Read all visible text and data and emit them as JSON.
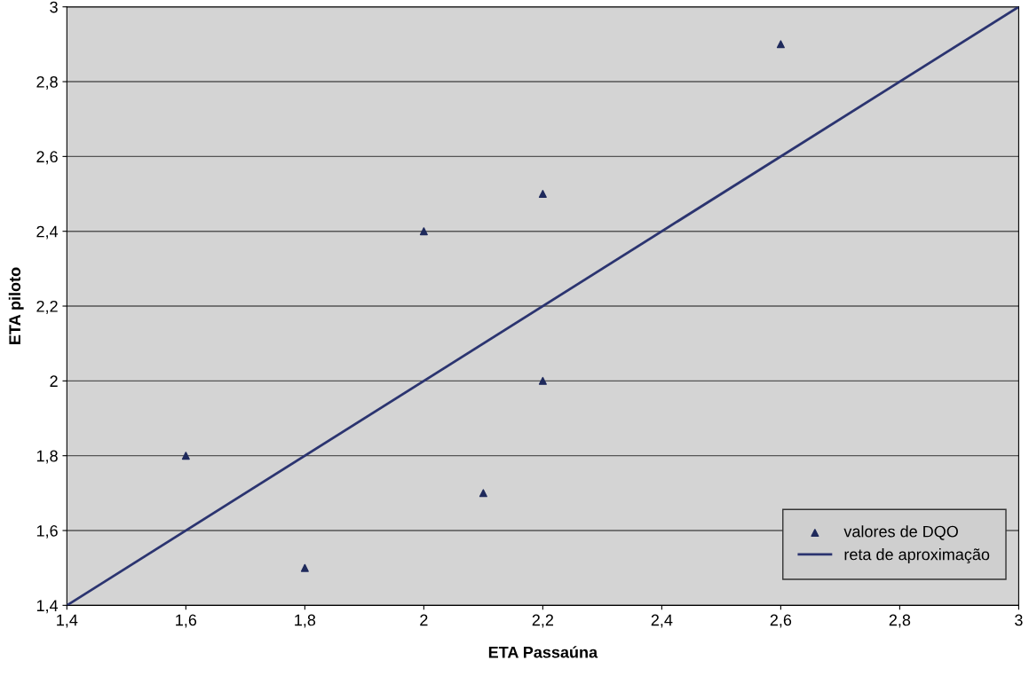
{
  "chart_data": {
    "type": "scatter",
    "xlabel": "ETA Passaúna",
    "ylabel": "ETA piloto",
    "xlim": [
      1.4,
      3
    ],
    "ylim": [
      1.4,
      3
    ],
    "xticks": [
      {
        "value": 1.4,
        "label": "1,4"
      },
      {
        "value": 1.6,
        "label": "1,6"
      },
      {
        "value": 1.8,
        "label": "1,8"
      },
      {
        "value": 2,
        "label": "2"
      },
      {
        "value": 2.2,
        "label": "2,2"
      },
      {
        "value": 2.4,
        "label": "2,4"
      },
      {
        "value": 2.6,
        "label": "2,6"
      },
      {
        "value": 2.8,
        "label": "2,8"
      },
      {
        "value": 3,
        "label": "3"
      }
    ],
    "yticks": [
      {
        "value": 1.4,
        "label": "1,4"
      },
      {
        "value": 1.6,
        "label": "1,6"
      },
      {
        "value": 1.8,
        "label": "1,8"
      },
      {
        "value": 2,
        "label": "2"
      },
      {
        "value": 2.2,
        "label": "2,2"
      },
      {
        "value": 2.4,
        "label": "2,4"
      },
      {
        "value": 2.6,
        "label": "2,6"
      },
      {
        "value": 2.8,
        "label": "2,8"
      },
      {
        "value": 3,
        "label": "3"
      }
    ],
    "grid": "y",
    "legend": "bottom right",
    "series": [
      {
        "name": "valores de DQO",
        "marker": "triangle",
        "color": "#1f2a5c",
        "x": [
          1.6,
          1.8,
          2.0,
          2.1,
          2.2,
          2.2,
          2.6
        ],
        "values": [
          1.8,
          1.5,
          2.4,
          1.7,
          2.5,
          2.0,
          2.9
        ]
      },
      {
        "name": "reta de aproximação",
        "type": "line",
        "marker": "none",
        "color": "#2b3470",
        "x": [
          1.4,
          3
        ],
        "values": [
          1.4,
          3
        ]
      }
    ]
  }
}
